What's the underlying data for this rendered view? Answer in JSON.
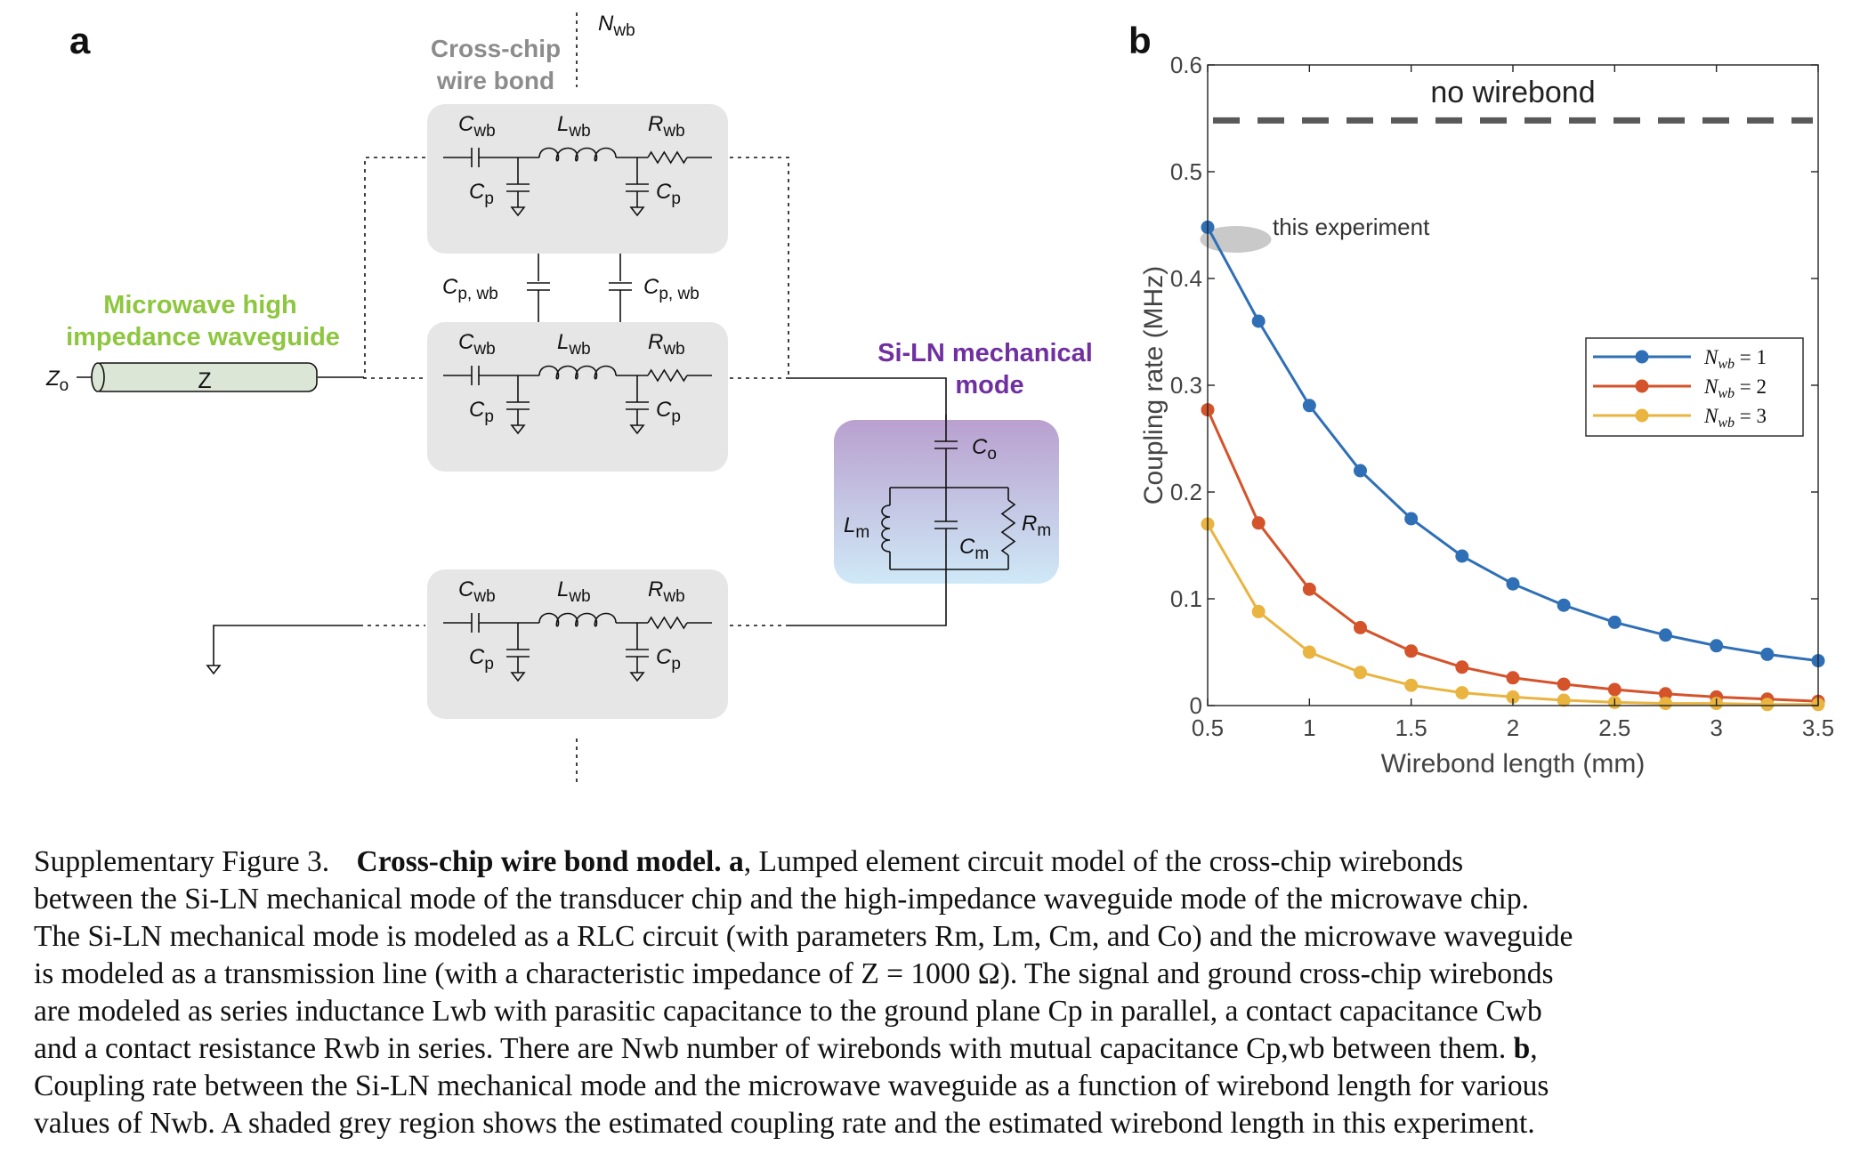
{
  "panel_a": {
    "letter": "a",
    "n_wb_label": "N",
    "n_wb_sub": "wb",
    "wirebond_title_line1": "Cross-chip",
    "wirebond_title_line2": "wire bond",
    "waveguide_title_line1": "Microwave high",
    "waveguide_title_line2": "impedance waveguide",
    "z0_label": "Z",
    "z0_sub": "o",
    "z_label": "Z",
    "mech_title_line1": "Si-LN mechanical",
    "mech_title_line2": "mode",
    "cwb": "C",
    "cwb_sub": "wb",
    "lwb": "L",
    "lwb_sub": "wb",
    "rwb": "R",
    "rwb_sub": "wb",
    "cp": "C",
    "cp_sub": "p",
    "cpwb": "C",
    "cpwb_sub": "p, wb",
    "co": "C",
    "co_sub": "o",
    "lm": "L",
    "lm_sub": "m",
    "cm": "C",
    "cm_sub": "m",
    "rm": "R",
    "rm_sub": "m",
    "colors": {
      "box_fill": "#e6e6e6",
      "waveguide_title": "#8dc63f",
      "mech_title": "#7030a0",
      "wire_bond_title": "#8c8c8c",
      "waveguide_fill": "#dbe6d6",
      "mech_grad_top": "#b9a0cf",
      "mech_grad_bottom": "#cfe9f7"
    }
  },
  "panel_b": {
    "letter": "b",
    "chart_data": {
      "type": "line",
      "xlabel": "Wirebond length (mm)",
      "ylabel": "Coupling rate (MHz)",
      "xlim": [
        0.5,
        3.5
      ],
      "ylim": [
        0,
        0.6
      ],
      "xticks": [
        "0.5",
        "1",
        "1.5",
        "2",
        "2.5",
        "3",
        "3.5"
      ],
      "yticks": [
        "0",
        "0.1",
        "0.2",
        "0.3",
        "0.4",
        "0.5",
        "0.6"
      ],
      "grid": false,
      "legend_position": "middle-right",
      "x": [
        0.5,
        0.75,
        1.0,
        1.25,
        1.5,
        1.75,
        2.0,
        2.25,
        2.5,
        2.75,
        3.0,
        3.25,
        3.5
      ],
      "series": [
        {
          "name": "N_{wb} = 1",
          "legend_text": "= 1",
          "color": "#2e6fb5",
          "values": [
            0.448,
            0.36,
            0.281,
            0.22,
            0.175,
            0.14,
            0.114,
            0.094,
            0.078,
            0.066,
            0.056,
            0.048,
            0.042
          ]
        },
        {
          "name": "N_{wb} = 2",
          "legend_text": "= 2",
          "color": "#d4532a",
          "values": [
            0.277,
            0.171,
            0.109,
            0.073,
            0.051,
            0.036,
            0.026,
            0.02,
            0.015,
            0.011,
            0.008,
            0.006,
            0.004
          ]
        },
        {
          "name": "N_{wb} = 3",
          "legend_text": "= 3",
          "color": "#e9b440",
          "values": [
            0.17,
            0.088,
            0.05,
            0.031,
            0.019,
            0.012,
            0.008,
            0.005,
            0.003,
            0.002,
            0.002,
            0.001,
            0.001
          ]
        }
      ],
      "reference_line": {
        "label": "no wirebond",
        "y": 0.548,
        "color": "#595959"
      },
      "annotation": {
        "text": "this experiment",
        "x": 0.55,
        "y": 0.43,
        "color": "#bfbfbf"
      }
    }
  },
  "caption": {
    "label": "Supplementary Figure 3.",
    "title": "Cross-chip wire bond model.",
    "line1_a": "a",
    "line1_rest": ", Lumped element circuit model of the cross-chip wirebonds",
    "line2": "between the Si-LN mechanical mode of the transducer chip and the high-impedance waveguide mode of the microwave chip.",
    "line3": "The Si-LN mechanical mode is modeled as a RLC circuit (with parameters Rm, Lm, Cm, and Co) and the microwave waveguide",
    "line4": "is modeled as a transmission line (with a characteristic impedance of Z = 1000 Ω). The signal and ground cross-chip wirebonds",
    "line5": "are modeled as series inductance Lwb with parasitic capacitance to the ground plane Cp in parallel, a contact capacitance Cwb",
    "line6_rest": "and a contact resistance Rwb in series. There are Nwb number of wirebonds with mutual capacitance Cp,wb between them.",
    "line6_b": "b",
    "line6_end": ",",
    "line7": "Coupling rate between the Si-LN mechanical mode and the microwave waveguide as a function of wirebond length for various",
    "line8": "values of Nwb. A shaded grey region shows the estimated coupling rate and the estimated wirebond length in this experiment."
  }
}
